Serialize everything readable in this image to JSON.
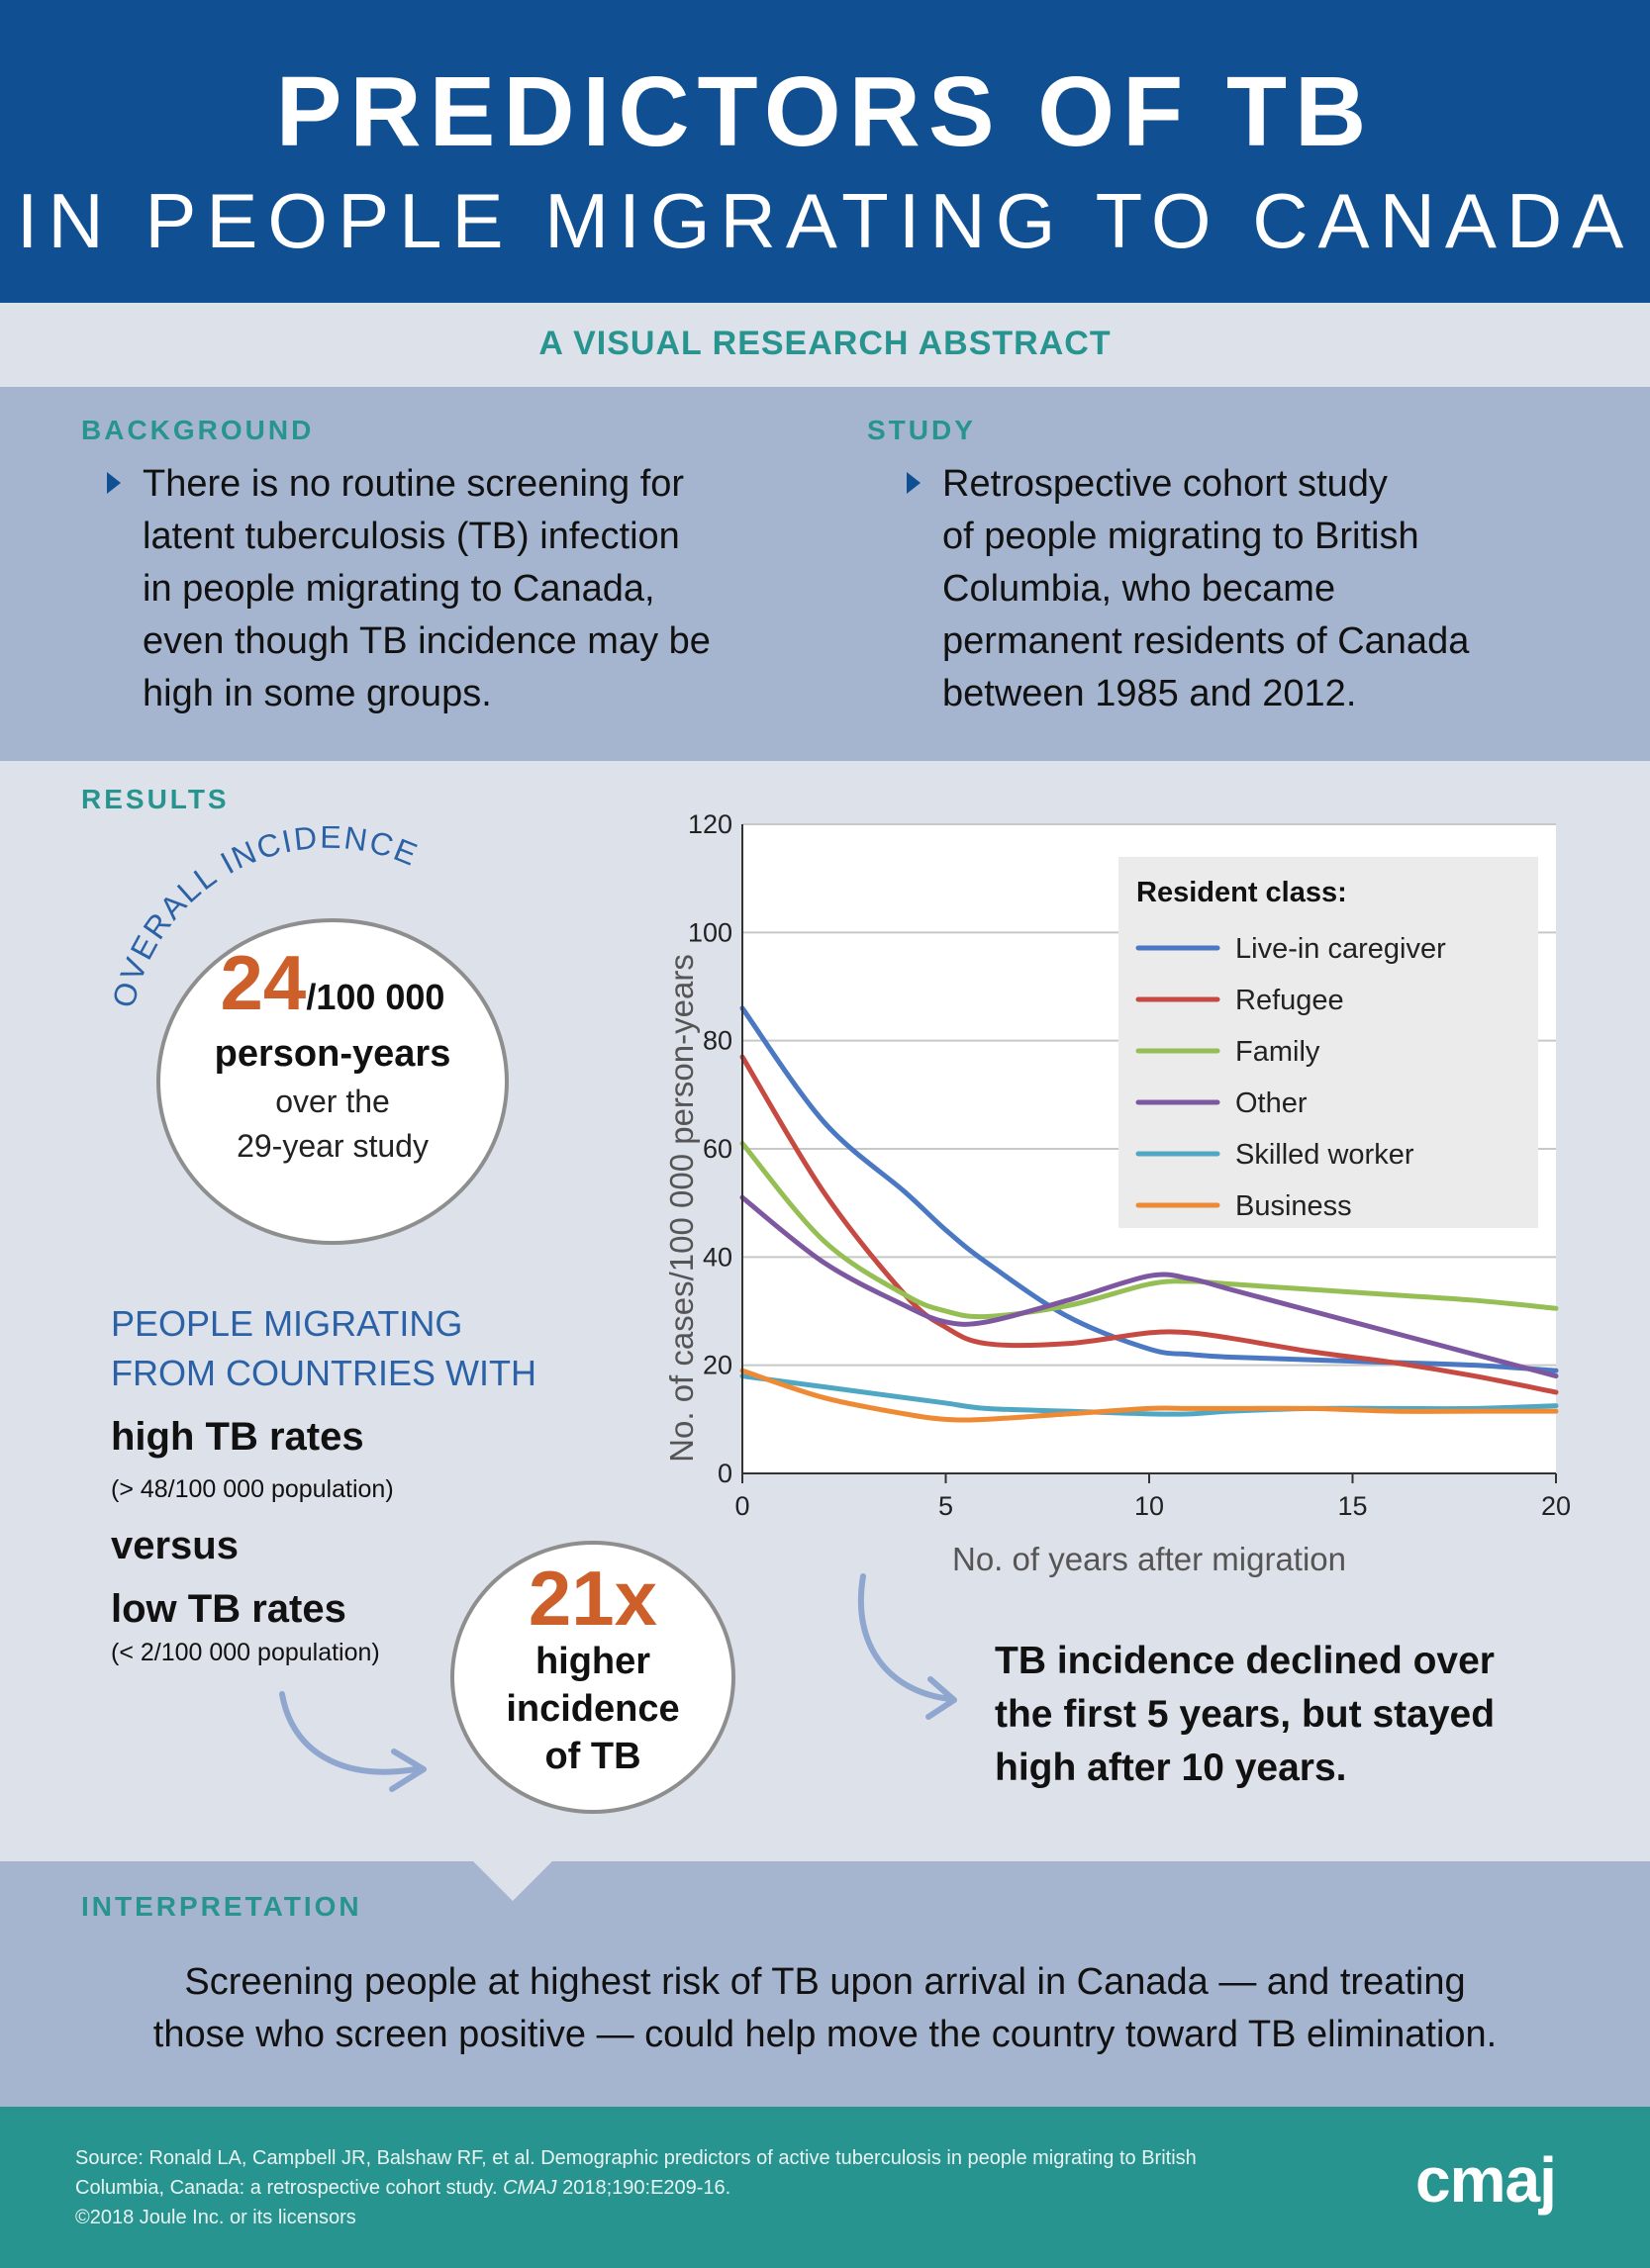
{
  "header": {
    "title_line1": "PREDICTORS OF TB",
    "title_line2": "IN PEOPLE MIGRATING TO CANADA"
  },
  "abstract_label": "A VISUAL RESEARCH ABSTRACT",
  "background": {
    "label": "BACKGROUND",
    "lines": [
      "There is no routine screening for",
      "latent tuberculosis (TB) infection",
      "in people migrating to Canada,",
      "even though TB incidence may be",
      "high in some groups."
    ]
  },
  "study": {
    "label": "STUDY",
    "lines": [
      "Retrospective cohort study",
      "of people migrating to British",
      "Columbia, who became",
      "permanent residents of Canada",
      "between 1985 and 2012."
    ]
  },
  "results": {
    "label": "RESULTS",
    "overall_arc": "OVERALL INCIDENCE",
    "overall_value": "24",
    "overall_unit": "/100 000",
    "overall_line2": "person-years",
    "overall_line3": "over the",
    "overall_line4": "29-year study",
    "migrating_line1": "PEOPLE MIGRATING",
    "migrating_line2": "FROM COUNTRIES WITH",
    "high_rates": "high TB rates",
    "high_rates_note": "(> 48/100 000 population)",
    "versus": "versus",
    "low_rates": "low TB rates",
    "low_rates_note": "(< 2/100 000 population)",
    "ratio_value": "21x",
    "ratio_line1": "higher",
    "ratio_line2": "incidence",
    "ratio_line3": "of TB",
    "chart_caption_line1": "TB incidence declined over",
    "chart_caption_line2": "the first 5 years, but stayed",
    "chart_caption_line3": "high after 10 years."
  },
  "chart_data": {
    "type": "line",
    "xlabel": "No. of years after migration",
    "ylabel": "No. of cases/100 000 person-years",
    "xlim": [
      0,
      20
    ],
    "ylim": [
      0,
      120
    ],
    "x_ticks": [
      "0",
      "5",
      "10",
      "15",
      "20"
    ],
    "y_ticks": [
      "0",
      "20",
      "40",
      "60",
      "80",
      "100",
      "120"
    ],
    "grid": true,
    "legend_title": "Resident class:",
    "legend_position": "top-right",
    "x": [
      0,
      2,
      4,
      5,
      6,
      8,
      10,
      11,
      12,
      14,
      16,
      18,
      20
    ],
    "series": [
      {
        "name": "Live-in caregiver",
        "color": "#4a78c2",
        "values": [
          86,
          65,
          52,
          45,
          39,
          29,
          23,
          22,
          21.5,
          21,
          20.5,
          20,
          19
        ]
      },
      {
        "name": "Refugee",
        "color": "#c64a42",
        "values": [
          77,
          52,
          33,
          27,
          24,
          24,
          26,
          26,
          25,
          22.5,
          20.5,
          18,
          15
        ]
      },
      {
        "name": "Family",
        "color": "#95bf55",
        "values": [
          61,
          43,
          33,
          30,
          29,
          31,
          35,
          35.5,
          35,
          34,
          33,
          32,
          30.5
        ]
      },
      {
        "name": "Other",
        "color": "#7d58a0",
        "values": [
          51,
          39,
          31,
          28,
          28,
          32,
          36.5,
          36,
          34,
          30,
          26,
          22,
          18
        ]
      },
      {
        "name": "Skilled worker",
        "color": "#4fa7c4",
        "values": [
          18,
          16,
          14,
          13,
          12,
          11.5,
          11,
          11,
          11.5,
          12,
          12,
          12,
          12.5
        ]
      },
      {
        "name": "Business",
        "color": "#ef8a34",
        "values": [
          19,
          14,
          11,
          10,
          10,
          11,
          12,
          12,
          12,
          12,
          11.5,
          11.5,
          11.5
        ]
      }
    ]
  },
  "interpretation": {
    "label": "INTERPRETATION",
    "line1": "Screening people at highest risk of TB upon arrival in Canada — and treating",
    "line2": "those who screen positive — could help move the country toward TB elimination."
  },
  "footer": {
    "source_line1": "Source: Ronald LA, Campbell JR, Balshaw RF, et al. Demographic predictors of active tuberculosis in people migrating to British",
    "source_line2_a": "Columbia, Canada: a retrospective cohort study. ",
    "source_line2_b": "CMAJ",
    "source_line2_c": " 2018;190:E209-16.",
    "copyright": "©2018 Joule Inc. or its licensors",
    "logo": "cmaj"
  },
  "colors": {
    "header_bg": "#0f4f92",
    "band_bg": "#a5b5cf",
    "light_bg": "#dde1ea",
    "teal": "#27948f",
    "orange": "#cc5f2a"
  }
}
